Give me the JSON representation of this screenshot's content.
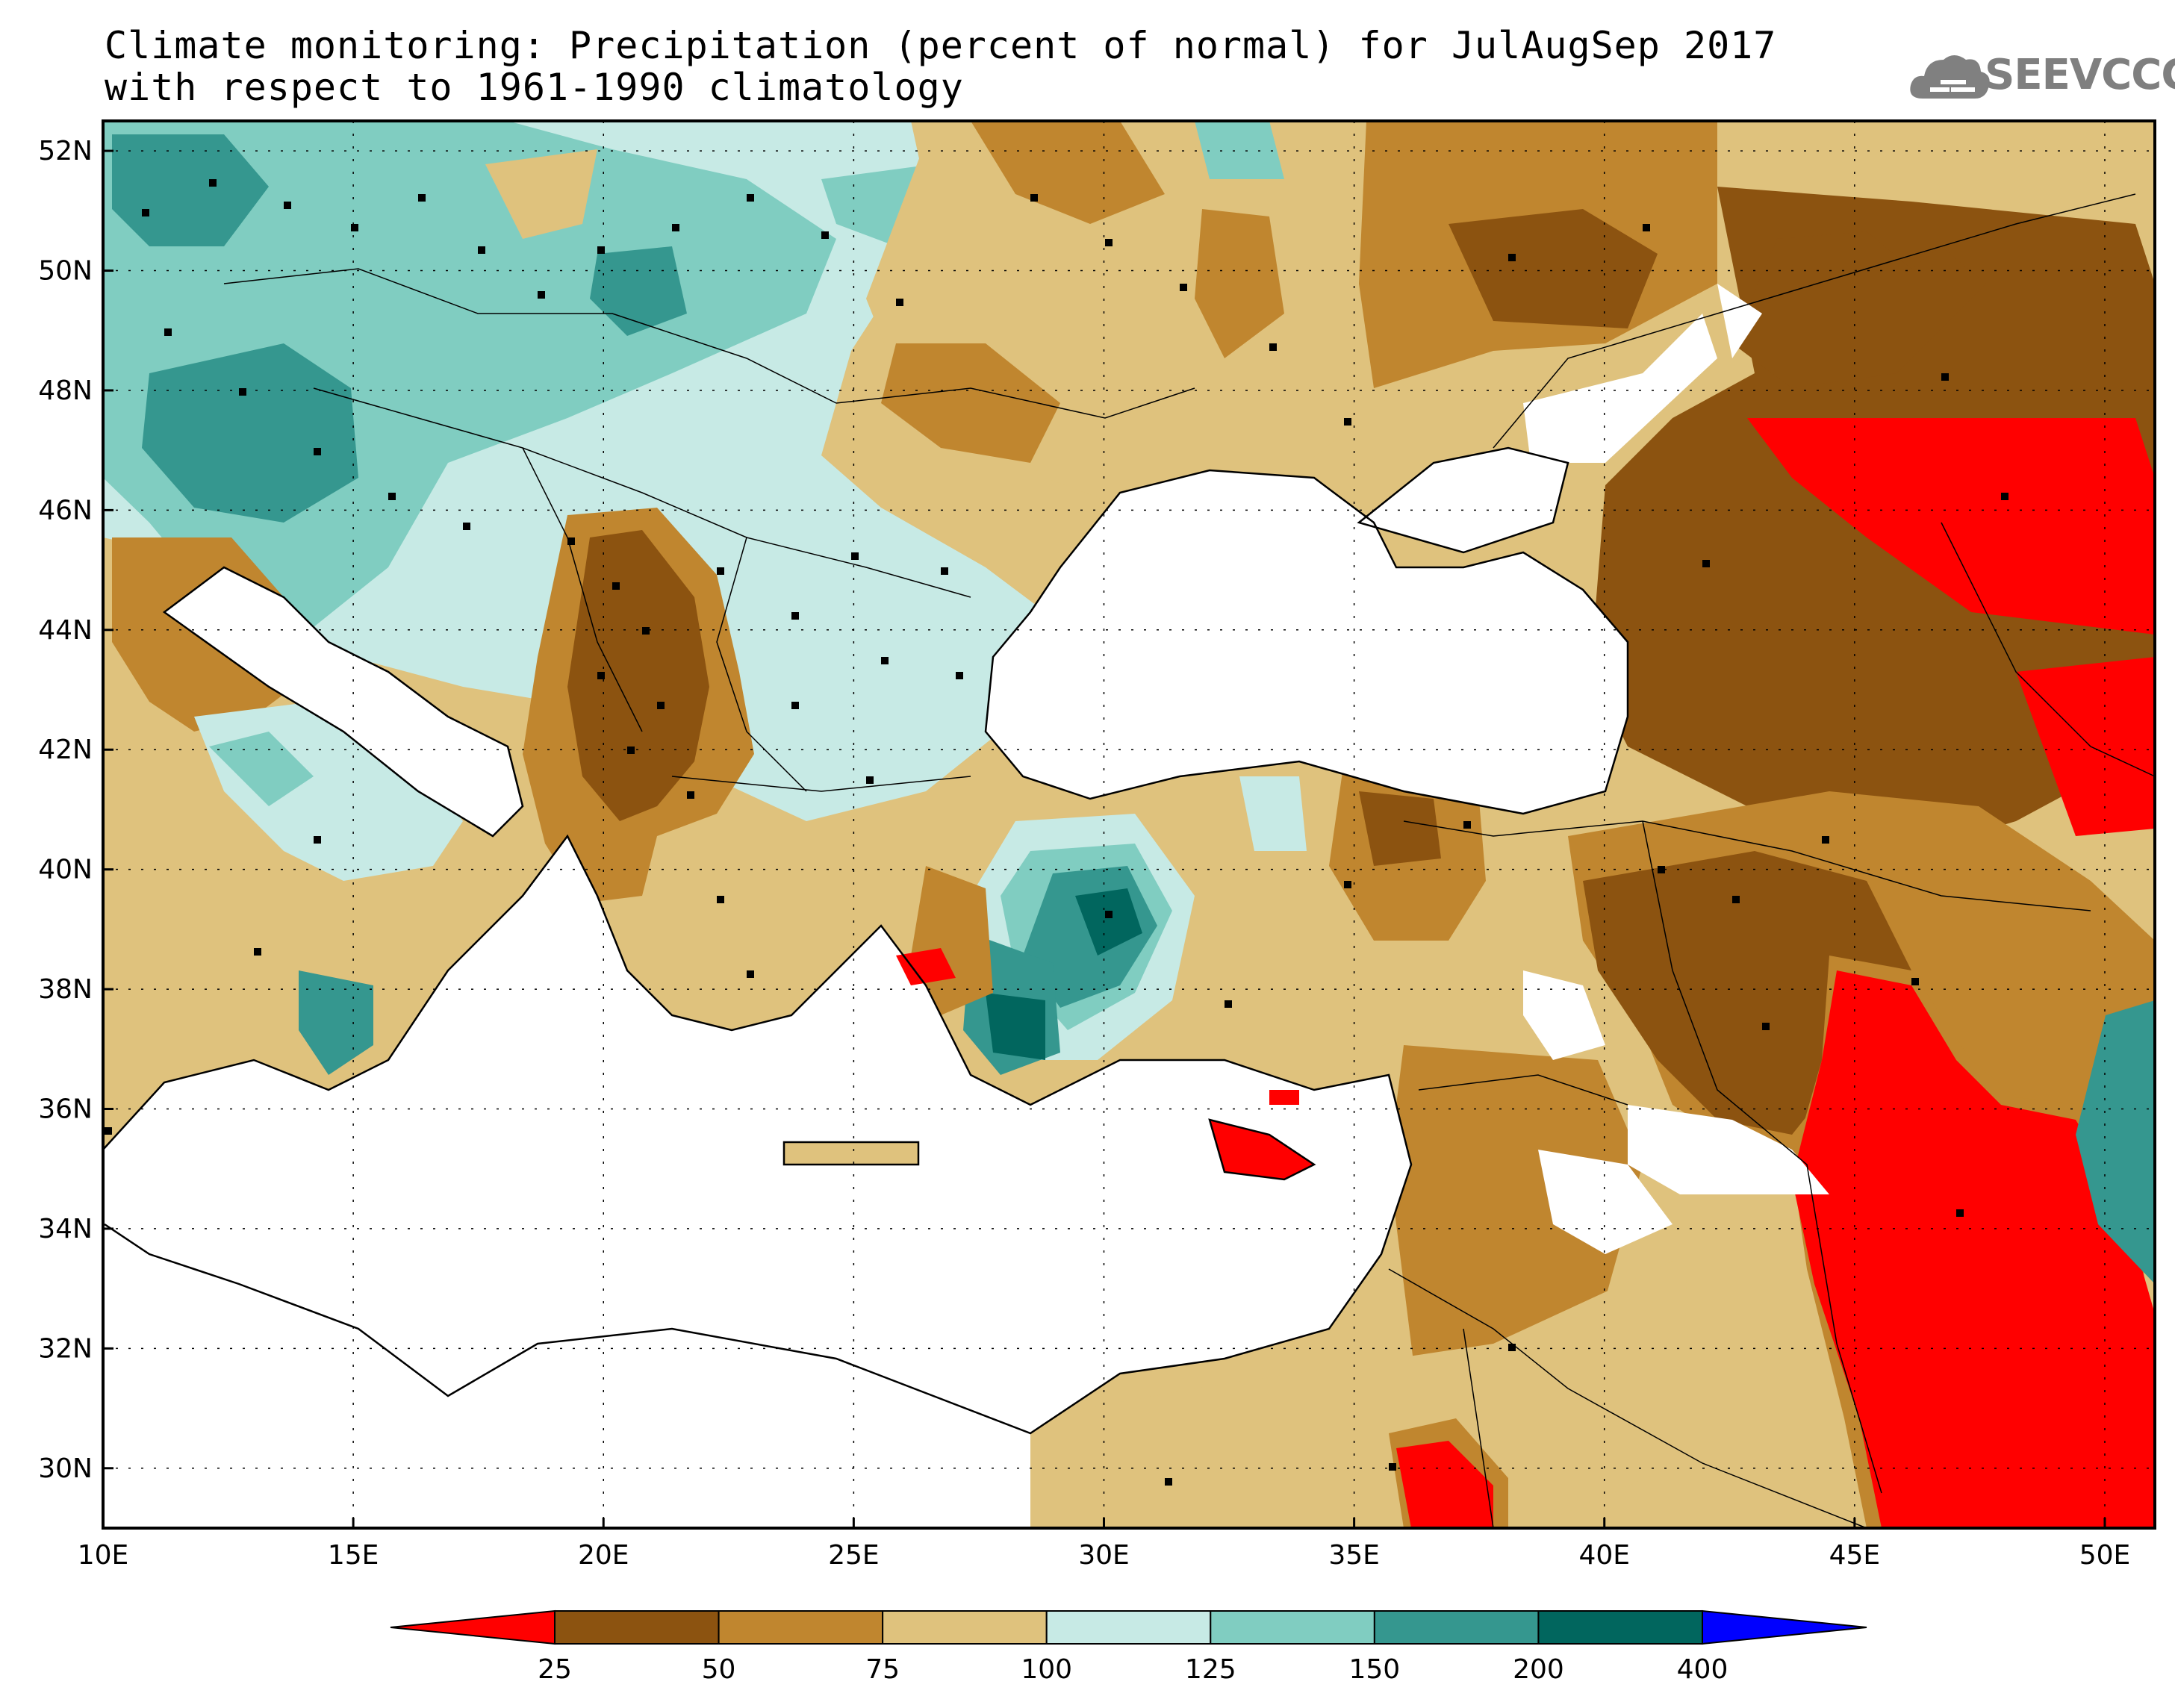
{
  "title": {
    "line1": "Climate monitoring: Precipitation (percent of normal) for JulAugSep 2017",
    "line2": "with respect to 1961-1990 climatology"
  },
  "logo": {
    "text": "SEEVCCC",
    "icon": "cloud-icon",
    "color": "#808080"
  },
  "map": {
    "lon_ticks": [
      "10E",
      "15E",
      "20E",
      "25E",
      "30E",
      "35E",
      "40E",
      "45E",
      "50E"
    ],
    "lat_ticks": [
      "30N",
      "32N",
      "34N",
      "36N",
      "38N",
      "40N",
      "42N",
      "44N",
      "46N",
      "48N",
      "50N",
      "52N"
    ],
    "lon_range": [
      10,
      51
    ],
    "lat_range": [
      29,
      52.5
    ]
  },
  "legend": {
    "thresholds": [
      "25",
      "50",
      "75",
      "100",
      "125",
      "150",
      "200",
      "400"
    ],
    "colors": [
      "#ff0000",
      "#8c5310",
      "#c0862f",
      "#dfc27d",
      "#c7eae5",
      "#80cdc1",
      "#35978f",
      "#01665e",
      "#0000ff"
    ]
  }
}
